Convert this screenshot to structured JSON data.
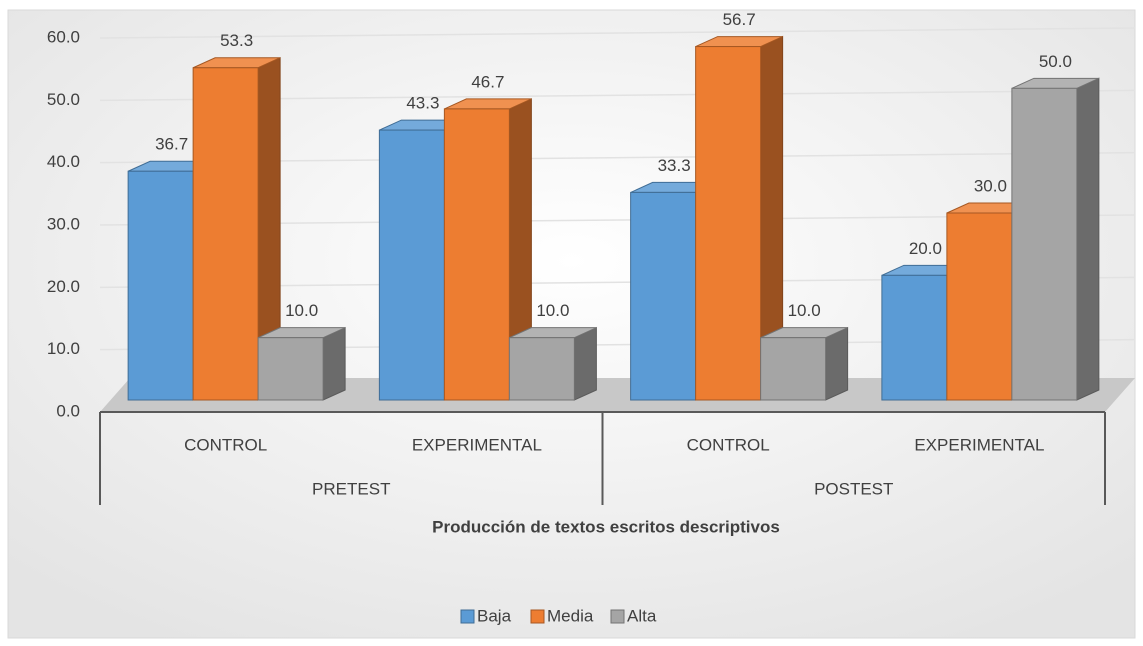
{
  "chart_data": {
    "type": "bar3d",
    "axis_title": "Producción de textos escritos descriptivos",
    "categories": [
      "CONTROL",
      "EXPERIMENTAL",
      "CONTROL",
      "EXPERIMENTAL"
    ],
    "groups": [
      {
        "label": "PRETEST",
        "span": 2
      },
      {
        "label": "POSTEST",
        "span": 2
      }
    ],
    "series": [
      {
        "name": "Baja",
        "color": "#5b9bd5",
        "values": [
          36.7,
          43.3,
          33.3,
          20.0
        ],
        "value_labels": [
          "36.7",
          "43.3",
          "33.3",
          "20.0"
        ]
      },
      {
        "name": "Media",
        "color": "#ed7d31",
        "values": [
          53.3,
          46.7,
          56.7,
          30.0
        ],
        "value_labels": [
          "53.3",
          "46.7",
          "56.7",
          "30.0"
        ]
      },
      {
        "name": "Alta",
        "color": "#a5a5a5",
        "values": [
          10.0,
          10.0,
          10.0,
          50.0
        ],
        "value_labels": [
          "10.0",
          "10.0",
          "10.0",
          "50.0"
        ]
      }
    ],
    "ylim": [
      0,
      60
    ],
    "yticks": [
      {
        "value": 0,
        "label": "0.0"
      },
      {
        "value": 10,
        "label": "10.0"
      },
      {
        "value": 20,
        "label": "20.0"
      },
      {
        "value": 30,
        "label": "30.0"
      },
      {
        "value": 40,
        "label": "40.0"
      },
      {
        "value": 50,
        "label": "50.0"
      },
      {
        "value": 60,
        "label": "60.0"
      }
    ],
    "grid": true,
    "legend": "bottom"
  }
}
